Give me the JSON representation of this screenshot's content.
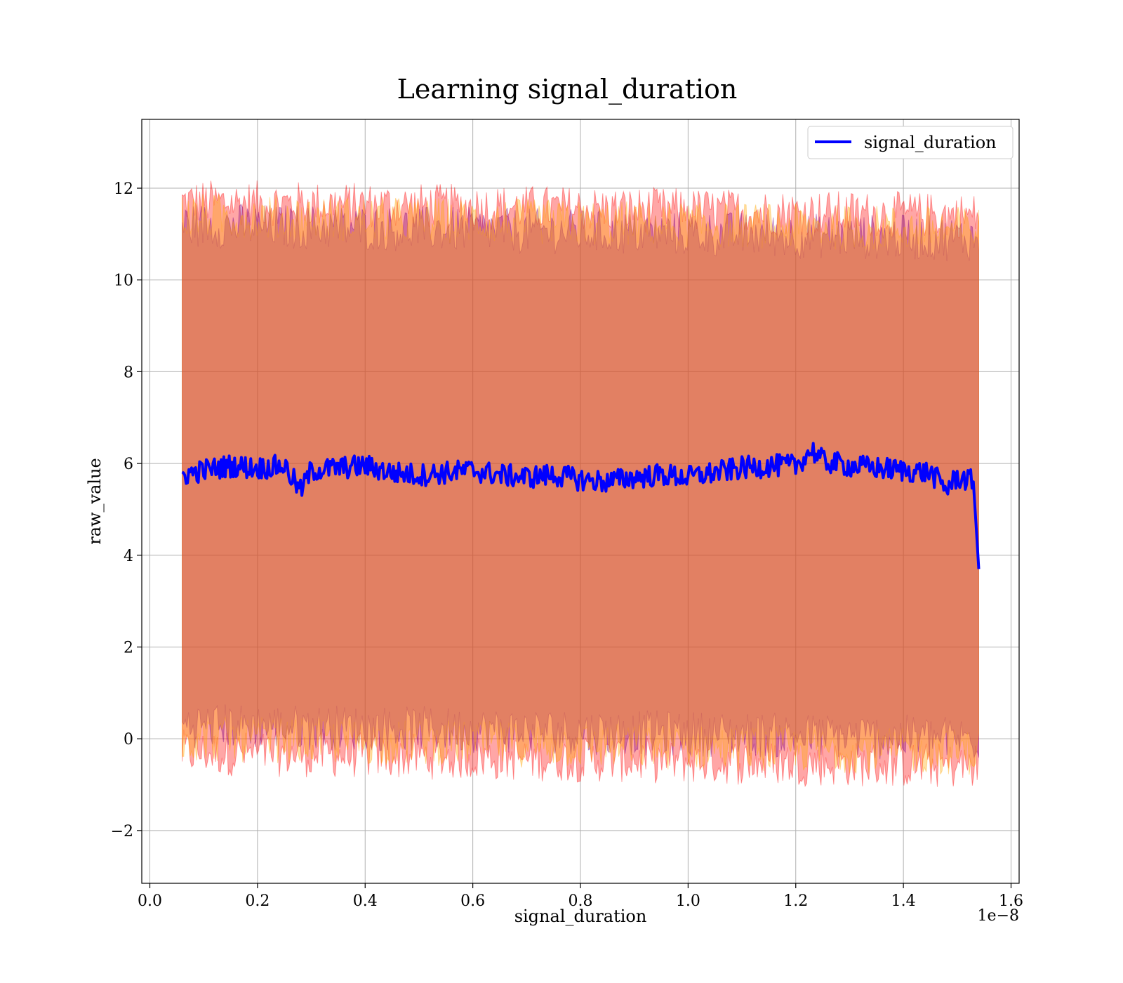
{
  "chart_data": {
    "type": "line",
    "title": "Learning signal_duration",
    "xlabel": "signal_duration",
    "ylabel": "raw_value",
    "x_offset_label": "1e−8",
    "xlim": [
      -0.015,
      1.615
    ],
    "ylim": [
      -3.15,
      13.5
    ],
    "x_ticks": [
      0.0,
      0.2,
      0.4,
      0.6,
      0.8,
      1.0,
      1.2,
      1.4,
      1.6
    ],
    "x_tick_labels": [
      "0.0",
      "0.2",
      "0.4",
      "0.6",
      "0.8",
      "1.0",
      "1.2",
      "1.4",
      "1.6"
    ],
    "y_ticks": [
      -2,
      0,
      2,
      4,
      6,
      8,
      10,
      12
    ],
    "y_tick_labels": [
      "−2",
      "0",
      "2",
      "4",
      "6",
      "8",
      "10",
      "12"
    ],
    "grid": true,
    "legend": {
      "position": "top-right",
      "entries": [
        "signal_duration"
      ]
    },
    "series": [
      {
        "name": "signal_duration",
        "color": "#0000ff",
        "x": [
          0.06,
          0.1,
          0.15,
          0.2,
          0.25,
          0.28,
          0.3,
          0.35,
          0.4,
          0.45,
          0.5,
          0.55,
          0.6,
          0.65,
          0.7,
          0.75,
          0.8,
          0.85,
          0.9,
          0.95,
          1.0,
          1.05,
          1.1,
          1.15,
          1.2,
          1.23,
          1.25,
          1.3,
          1.35,
          1.4,
          1.45,
          1.48,
          1.5,
          1.53,
          1.54
        ],
        "values": [
          5.75,
          5.85,
          5.95,
          5.9,
          5.95,
          5.4,
          5.85,
          5.9,
          5.95,
          5.8,
          5.75,
          5.8,
          5.85,
          5.75,
          5.7,
          5.75,
          5.65,
          5.6,
          5.7,
          5.75,
          5.7,
          5.8,
          5.9,
          5.95,
          5.95,
          6.3,
          6.05,
          5.95,
          5.9,
          5.85,
          5.8,
          5.45,
          5.7,
          5.6,
          3.7
        ]
      }
    ],
    "bands": [
      {
        "color": "#ff0000",
        "x": [
          0.06,
          1.54
        ],
        "upper": [
          11.7,
          11.4
        ],
        "lower": [
          -0.3,
          -0.6
        ]
      },
      {
        "color": "#800080",
        "x": [
          0.06,
          1.54
        ],
        "upper": [
          11.2,
          10.9
        ],
        "lower": [
          0.3,
          0.0
        ]
      },
      {
        "color": "#ffa500",
        "x": [
          0.06,
          1.54
        ],
        "upper": [
          11.4,
          11.1
        ],
        "lower": [
          0.0,
          -0.3
        ]
      }
    ]
  }
}
